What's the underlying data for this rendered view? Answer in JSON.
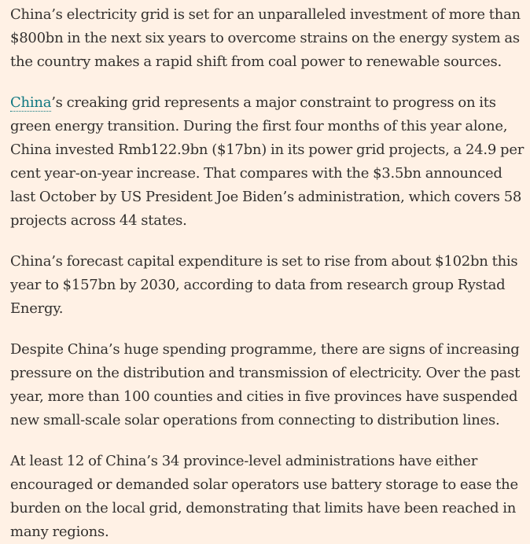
{
  "article": {
    "paragraphs": [
      {
        "text": "China’s electricity grid is set for an unparalleled investment of more than $800bn in the next six years to overcome strains on the energy system as the country makes a rapid shift from coal power to renewable sources."
      },
      {
        "link_text": "China",
        "text": "’s creaking grid represents a major constraint to progress on its green energy transition. During the first four months of this year alone, China invested Rmb122.9bn ($17bn) in its power grid projects, a 24.9 per cent year-on-year increase. That compares with the $3.5bn announced last October by US President Joe Biden’s administration, which covers 58 projects across 44 states."
      },
      {
        "text": "China’s forecast capital expenditure is set to rise from about $102bn this year to $157bn by 2030, according to data from research group Rystad Energy."
      },
      {
        "text": "Despite China’s huge spending programme, there are signs of increasing pressure on the distribution and transmission of electricity. Over the past year, more than 100 counties and cities in five provinces have suspended new small-scale solar operations from connecting to distribution lines."
      },
      {
        "text": "At least 12 of China’s 34 province-level administrations have either encouraged or demanded solar operators use battery storage to ease the burden on the local grid, demonstrating that limits have been reached in many regions."
      }
    ]
  },
  "colors": {
    "background": "#fff1e5",
    "text": "#33302e",
    "link": "#0d7680"
  }
}
